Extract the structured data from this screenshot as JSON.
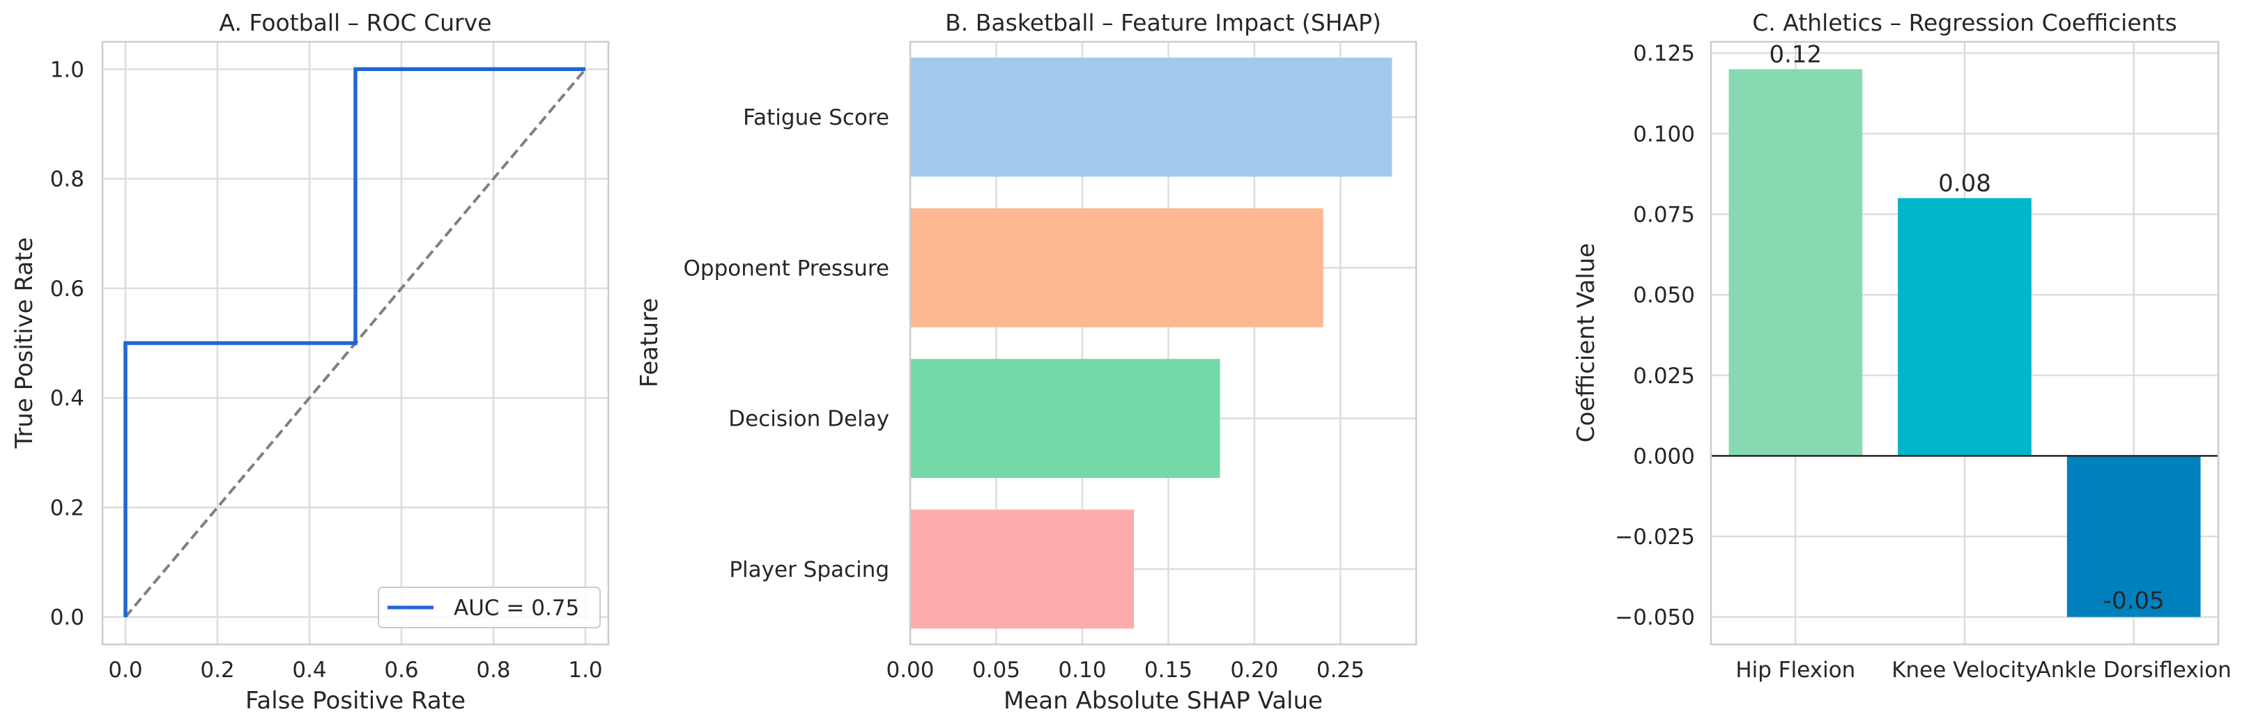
{
  "chart_data": [
    {
      "type": "line",
      "title": "A. Football – ROC Curve",
      "xlabel": "False Positive Rate",
      "ylabel": "True Positive Rate",
      "xlim": [
        -0.05,
        1.05
      ],
      "ylim": [
        -0.05,
        1.05
      ],
      "xticks": [
        "0.0",
        "0.2",
        "0.4",
        "0.6",
        "0.8",
        "1.0"
      ],
      "yticks": [
        "0.0",
        "0.2",
        "0.4",
        "0.6",
        "0.8",
        "1.0"
      ],
      "grid": true,
      "legend_position": "lower-right",
      "series": [
        {
          "name": "AUC = 0.75",
          "x": [
            0.0,
            0.0,
            0.5,
            0.5,
            1.0
          ],
          "y": [
            0.0,
            0.5,
            0.5,
            1.0,
            1.0
          ],
          "color": "#2266d4",
          "style": "solid"
        },
        {
          "x": [
            0.0,
            1.0
          ],
          "y": [
            0.0,
            1.0
          ],
          "color": "#808080",
          "style": "dashed"
        }
      ]
    },
    {
      "type": "bar",
      "orientation": "horizontal",
      "title": "B. Basketball – Feature Impact (SHAP)",
      "xlabel": "Mean Absolute SHAP Value",
      "ylabel": "Feature",
      "xlim": [
        0,
        0.294
      ],
      "xticks": [
        "0.00",
        "0.05",
        "0.10",
        "0.15",
        "0.20",
        "0.25"
      ],
      "grid": true,
      "categories": [
        "Fatigue Score",
        "Opponent Pressure",
        "Decision Delay",
        "Player Spacing"
      ],
      "values": [
        0.28,
        0.24,
        0.18,
        0.13
      ],
      "colors": [
        "#a1c9ec",
        "#fdb892",
        "#73d9a8",
        "#fcadab"
      ]
    },
    {
      "type": "bar",
      "title": "C. Athletics – Regression Coefficients",
      "xlabel": "",
      "ylabel": "Coefficient Value",
      "ylim": [
        -0.0585,
        0.1285
      ],
      "yticks": [
        "−0.050",
        "−0.025",
        "0.000",
        "0.025",
        "0.050",
        "0.075",
        "0.100",
        "0.125"
      ],
      "grid": true,
      "categories": [
        "Hip Flexion",
        "Knee Velocity",
        "Ankle Dorsiflexion"
      ],
      "values": [
        0.12,
        0.08,
        -0.05
      ],
      "value_labels": [
        "0.12",
        "0.08",
        "-0.05"
      ],
      "colors": [
        "#87d9b2",
        "#00b6c9",
        "#0081be"
      ]
    }
  ]
}
